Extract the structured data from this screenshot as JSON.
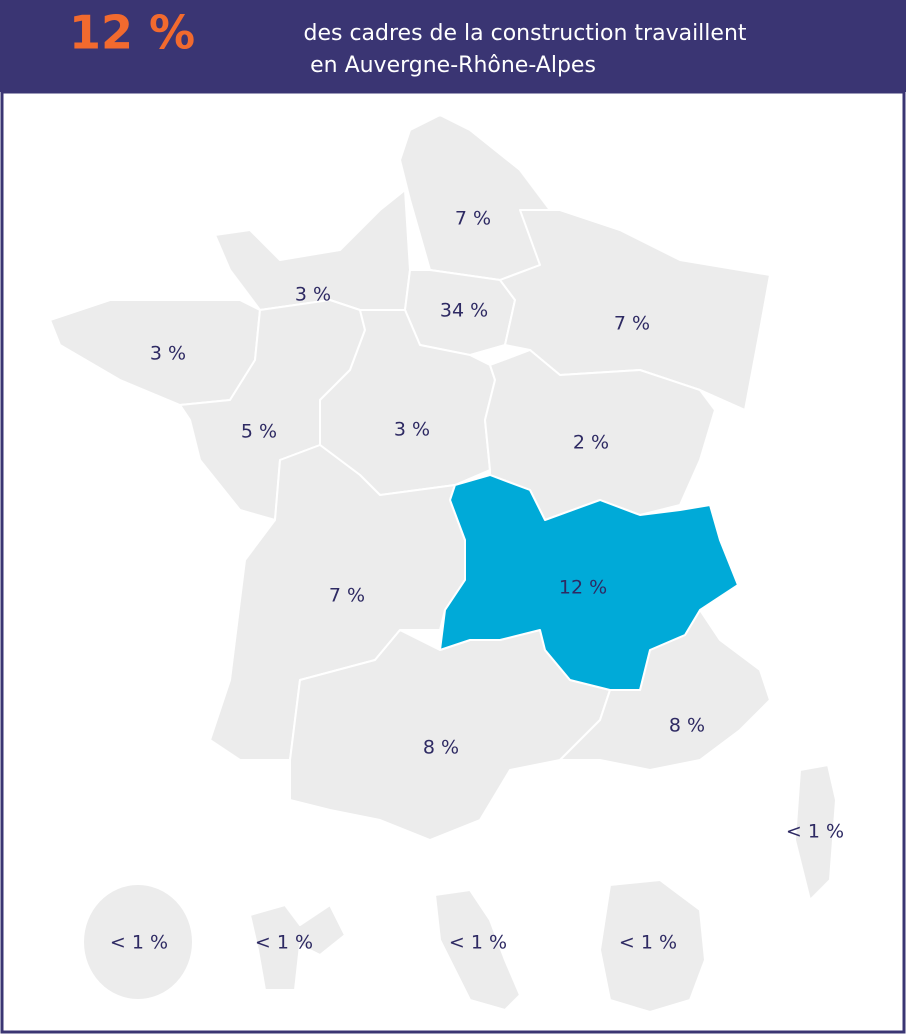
{
  "header": {
    "highlight": "12 %",
    "lines": [
      "des cadres de la construction travaillent",
      "en Auvergne-Rhône-Alpes"
    ]
  },
  "regions": [
    {
      "label": "7 %"
    },
    {
      "label": "3 %"
    },
    {
      "label": "34 %"
    },
    {
      "label": "7 %"
    },
    {
      "label": "3 %"
    },
    {
      "label": "5 %"
    },
    {
      "label": "3 %"
    },
    {
      "label": "2 %"
    },
    {
      "label": "12 %"
    },
    {
      "label": "7 %"
    },
    {
      "label": "8 %"
    },
    {
      "label": "8 %"
    },
    {
      "label": "< 1 %"
    },
    {
      "label": "< 1 %"
    },
    {
      "label": "< 1 %"
    },
    {
      "label": "< 1 %"
    },
    {
      "label": "< 1 %"
    }
  ]
}
